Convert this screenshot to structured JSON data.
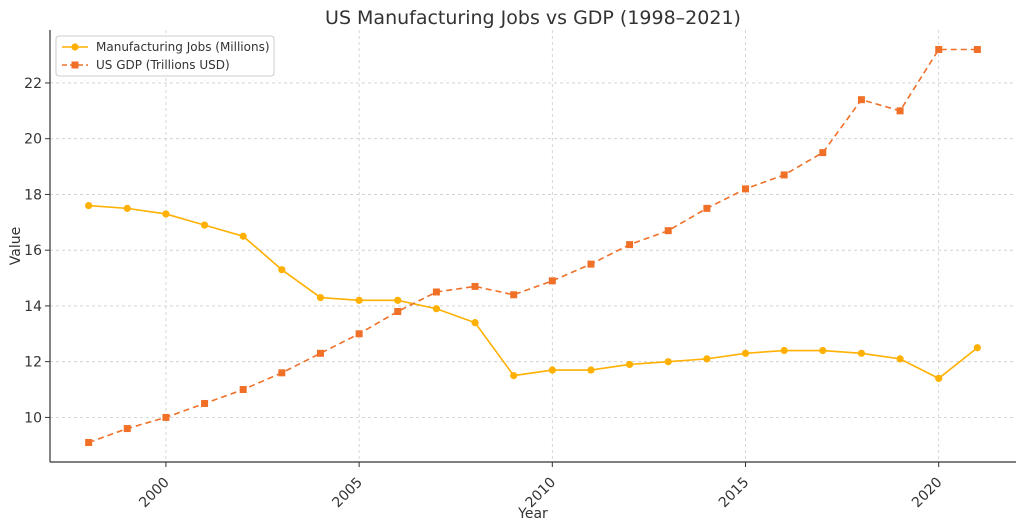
{
  "chart_data": {
    "type": "line",
    "title": "US Manufacturing Jobs vs GDP (1998–2021)",
    "xlabel": "Year",
    "ylabel": "Value",
    "x": [
      1998,
      1999,
      2000,
      2001,
      2002,
      2003,
      2004,
      2005,
      2006,
      2007,
      2008,
      2009,
      2010,
      2011,
      2012,
      2013,
      2014,
      2015,
      2016,
      2017,
      2018,
      2019,
      2020,
      2021
    ],
    "xlim": [
      1997.0,
      2022.0
    ],
    "ylim": [
      8.4,
      23.9
    ],
    "xticks": [
      2000,
      2005,
      2010,
      2015,
      2020
    ],
    "yticks": [
      10,
      12,
      14,
      16,
      18,
      20,
      22
    ],
    "grid": true,
    "legend_position": "top-left",
    "series": [
      {
        "name": "Manufacturing Jobs (Millions)",
        "color": "#FFB000",
        "marker": "circle",
        "line_style": "solid",
        "values": [
          17.6,
          17.5,
          17.3,
          16.9,
          16.5,
          15.3,
          14.3,
          14.2,
          14.2,
          13.9,
          13.4,
          11.5,
          11.7,
          11.7,
          11.9,
          12.0,
          12.1,
          12.3,
          12.4,
          12.4,
          12.3,
          12.1,
          11.4,
          12.5
        ]
      },
      {
        "name": "US GDP (Trillions USD)",
        "color": "#F07028",
        "marker": "square",
        "line_style": "dashed",
        "values": [
          9.1,
          9.6,
          10.0,
          10.5,
          11.0,
          11.6,
          12.3,
          13.0,
          13.8,
          14.5,
          14.7,
          14.4,
          14.9,
          15.5,
          16.2,
          16.7,
          17.5,
          18.2,
          18.7,
          19.5,
          21.4,
          21.0,
          23.2,
          23.2
        ]
      }
    ]
  }
}
